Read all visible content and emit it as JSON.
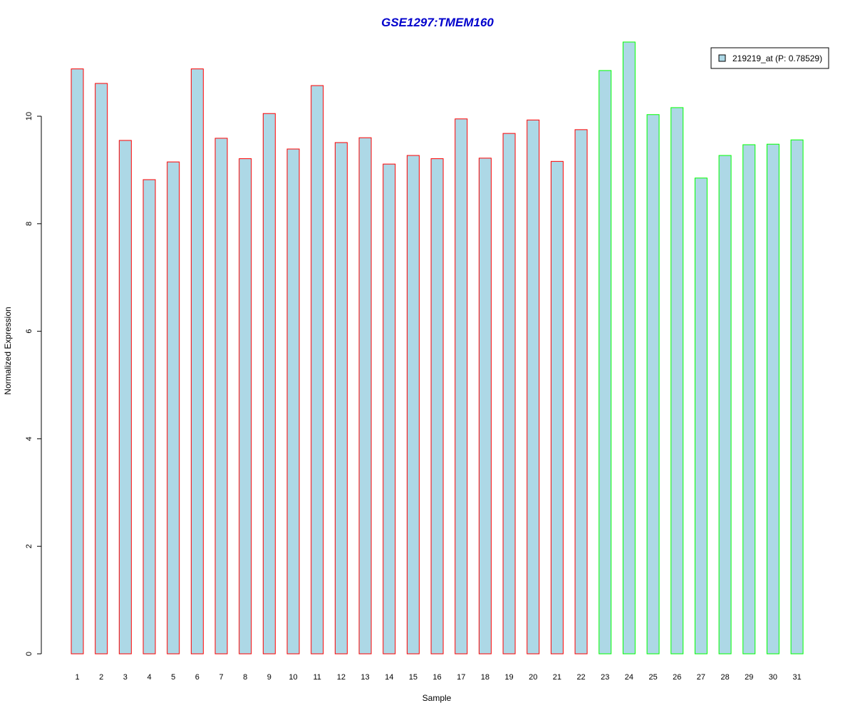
{
  "chart_data": {
    "type": "bar",
    "title": "GSE1297:TMEM160",
    "xlabel": "Sample",
    "ylabel": "Normalized Expression",
    "ylim": [
      0,
      11.4
    ],
    "yticks": [
      0,
      2,
      4,
      6,
      8,
      10
    ],
    "grid": false,
    "legend_position": "top-right",
    "categories": [
      "1",
      "2",
      "3",
      "4",
      "5",
      "6",
      "7",
      "8",
      "9",
      "10",
      "11",
      "12",
      "13",
      "14",
      "15",
      "16",
      "17",
      "18",
      "19",
      "20",
      "21",
      "22",
      "23",
      "24",
      "25",
      "26",
      "27",
      "28",
      "29",
      "30",
      "31"
    ],
    "series": [
      {
        "name": "219219_at (P: 0.78529)",
        "values": [
          10.88,
          10.61,
          9.55,
          8.82,
          9.15,
          10.88,
          9.59,
          9.21,
          10.05,
          9.39,
          10.57,
          9.51,
          9.6,
          9.11,
          9.27,
          9.21,
          9.95,
          9.22,
          9.68,
          9.93,
          9.16,
          9.75,
          10.85,
          11.38,
          10.03,
          10.16,
          8.85,
          9.27,
          9.47,
          9.48,
          9.56
        ],
        "fill": "#add8e6"
      }
    ],
    "groups": [
      {
        "from": 1,
        "to": 22,
        "border": "#ff0000"
      },
      {
        "from": 23,
        "to": 31,
        "border": "#00ff00"
      }
    ],
    "colors": {
      "title": "#0000cc",
      "axis": "#000000",
      "legend_border": "#000000"
    }
  }
}
